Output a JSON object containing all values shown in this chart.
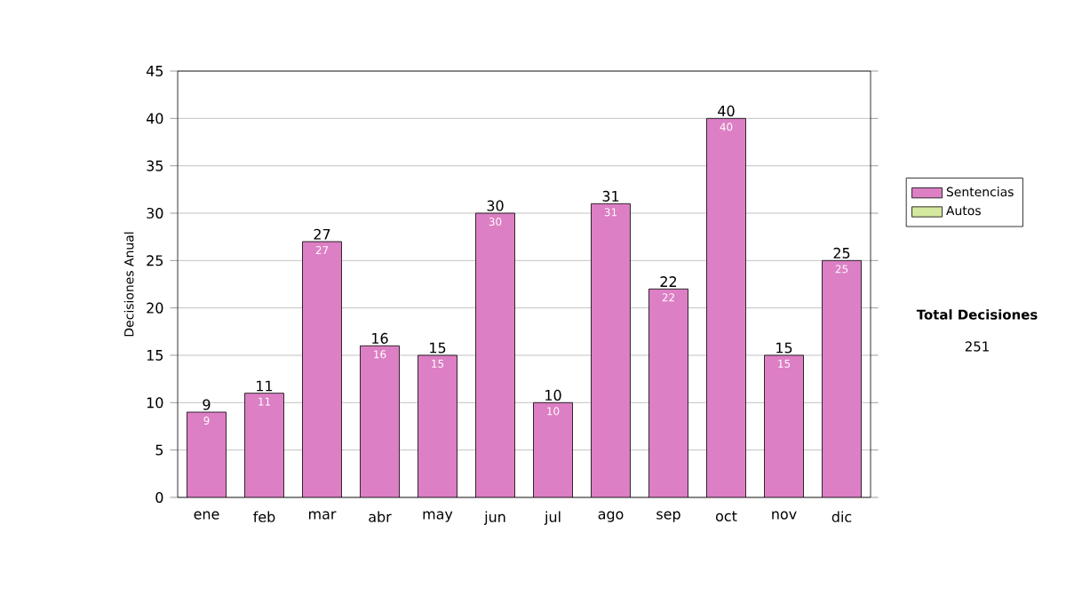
{
  "chart_data": {
    "type": "bar",
    "categories": [
      "ene",
      "feb",
      "mar",
      "abr",
      "may",
      "jun",
      "jul",
      "ago",
      "sep",
      "oct",
      "nov",
      "dic"
    ],
    "series": [
      {
        "name": "Sentencias",
        "color": "#dc7fc4",
        "values": [
          9,
          11,
          27,
          16,
          15,
          30,
          10,
          31,
          22,
          40,
          15,
          25
        ]
      },
      {
        "name": "Autos",
        "color": "#d4e8a0",
        "values": [
          null,
          null,
          null,
          null,
          null,
          null,
          null,
          null,
          null,
          null,
          null,
          null
        ]
      }
    ],
    "data_labels": true,
    "totals": [
      "9",
      "11",
      "27",
      "16",
      "15",
      "30",
      "10",
      "31",
      "22",
      "40",
      "15",
      "25"
    ],
    "ylabel": "Decisiones Anual",
    "ylim": [
      0,
      45
    ],
    "yticks": [
      0,
      5,
      10,
      15,
      20,
      25,
      30,
      35,
      40,
      45
    ],
    "grid": "y",
    "legend": "right",
    "annotations": [
      "Total Decisiones",
      "251"
    ]
  }
}
